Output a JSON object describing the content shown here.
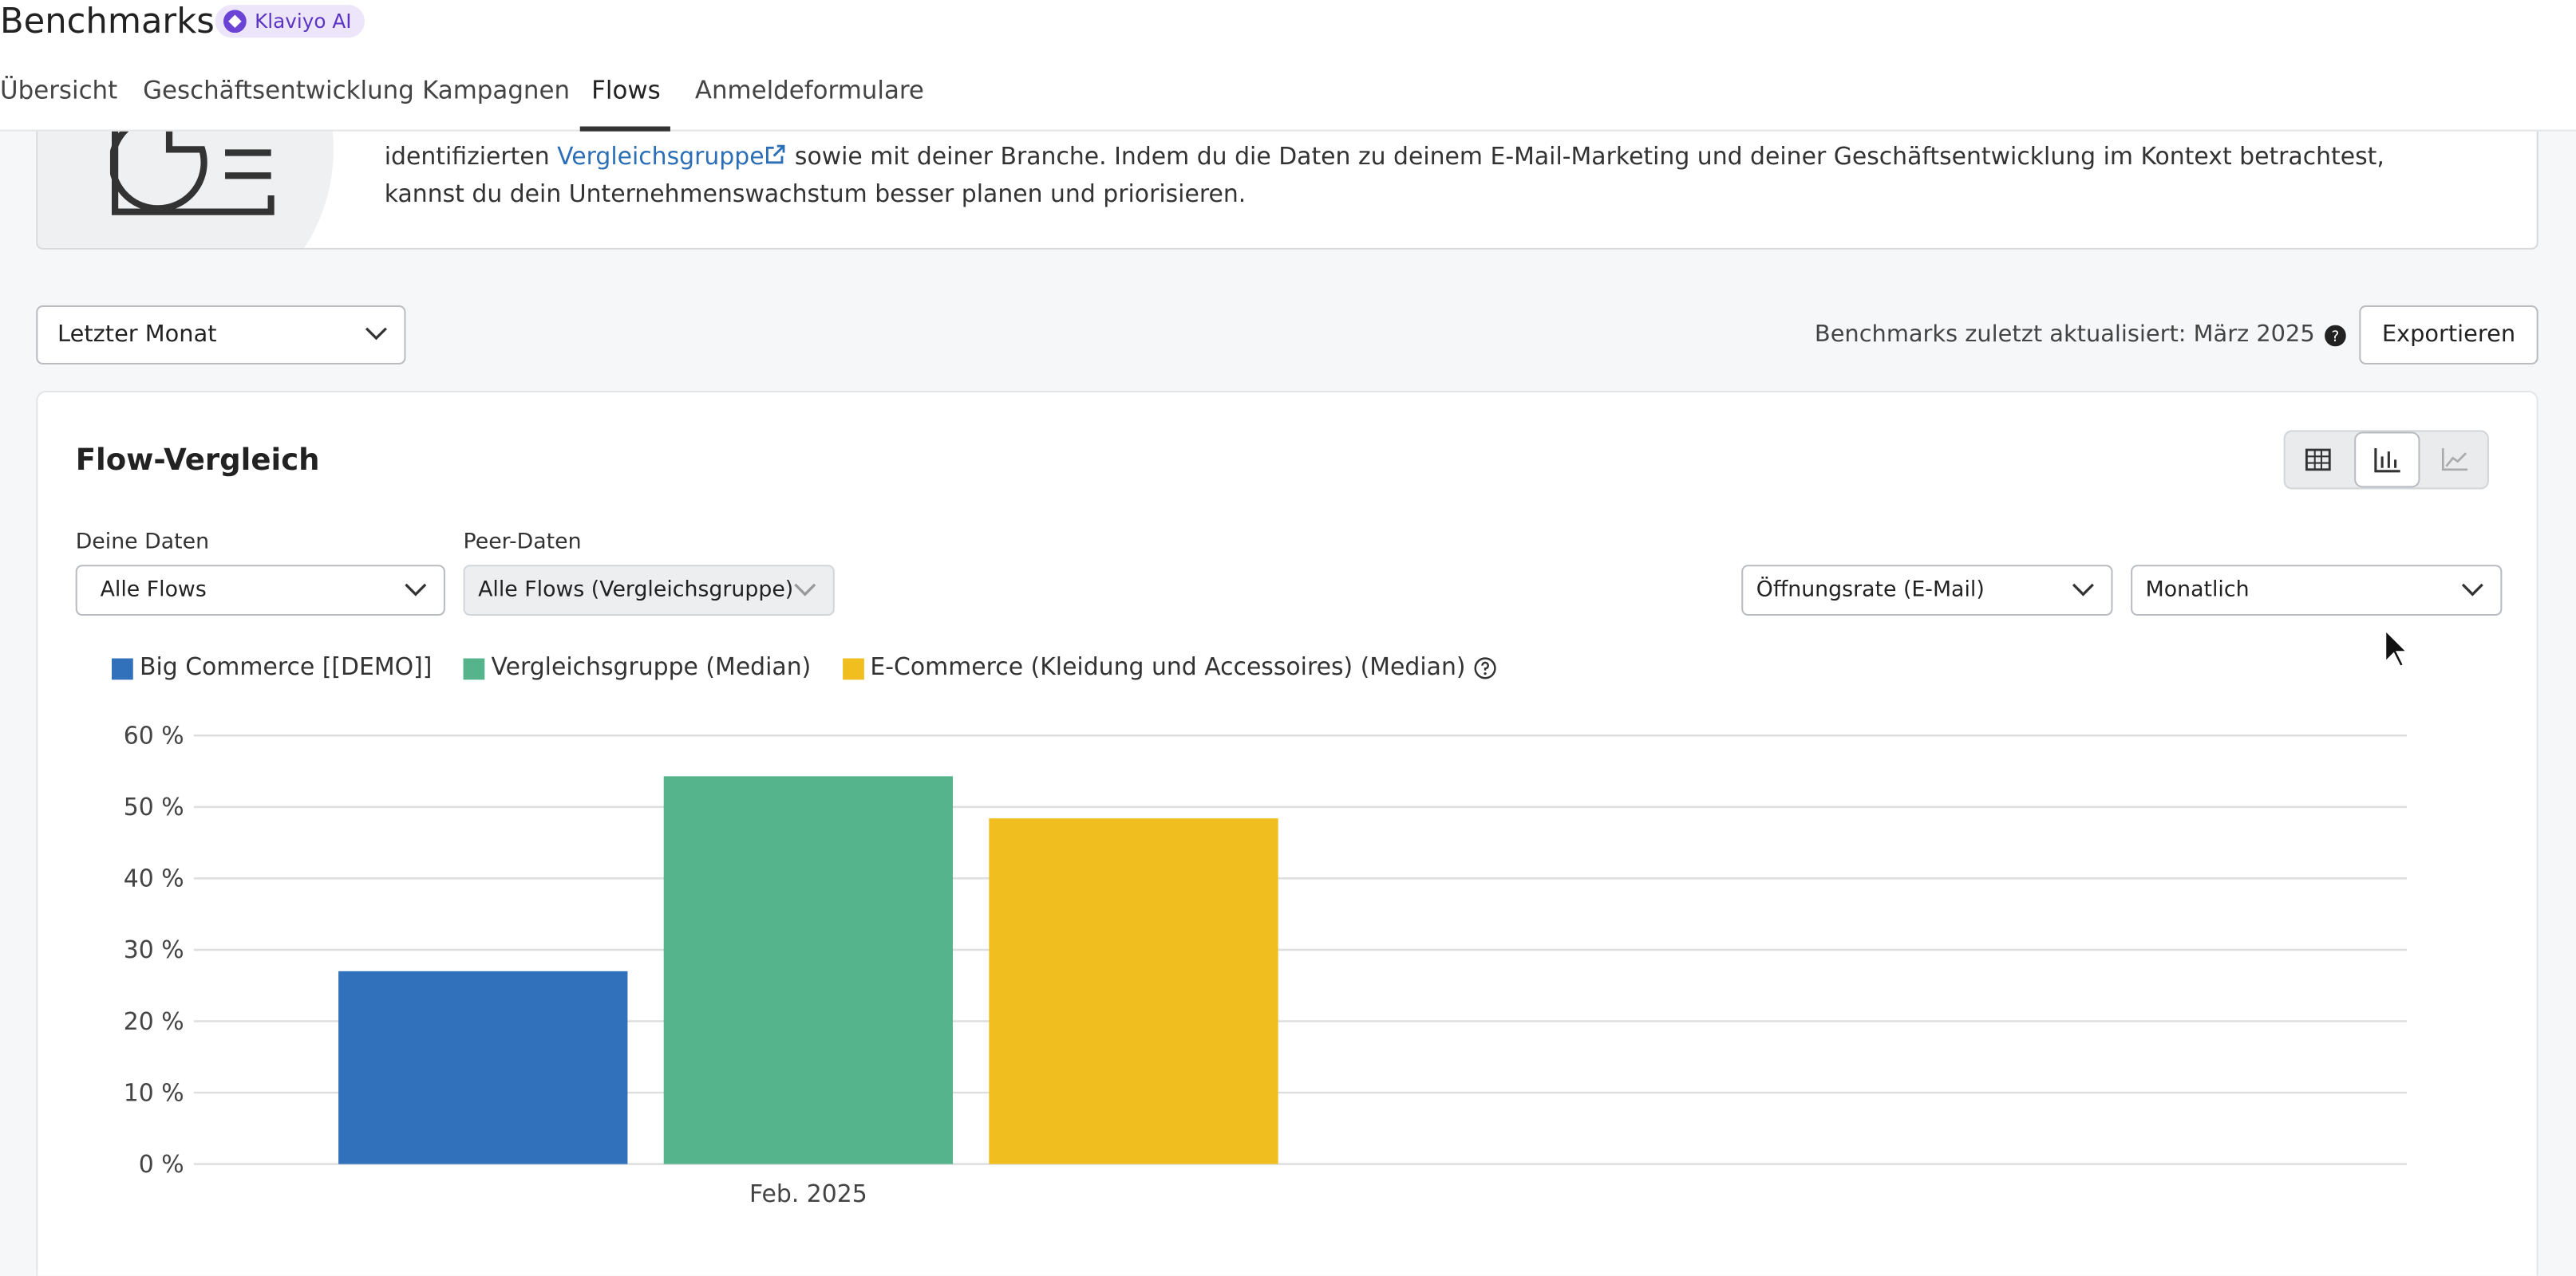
{
  "header": {
    "title": "Benchmarks",
    "badge": "Klaviyo AI"
  },
  "tabs": [
    "Übersicht",
    "Geschäftsentwicklung",
    "Kampagnen",
    "Flows",
    "Anmeldeformulare"
  ],
  "intro": {
    "before": "identifizierten",
    "link": "Vergleichsgruppe",
    "after": "sowie mit deiner Branche. Indem du die Daten zu deinem E-Mail-Marketing und deiner Geschäftsentwicklung im Kontext betrachtest, kannst du dein Unternehmenswachstum besser planen und priorisieren."
  },
  "toolbar": {
    "period": "Letzter Monat",
    "updated": "Benchmarks zuletzt aktualisiert: März 2025",
    "export": "Exportieren"
  },
  "card": {
    "title": "Flow-Vergleich",
    "filters": [
      {
        "label": "Deine Daten",
        "value": "Alle Flows"
      },
      {
        "label": "Peer-Daten",
        "value": "Alle Flows (Vergleichsgruppe)"
      }
    ],
    "metric": "Öffnungsrate (E-Mail)",
    "interval": "Monatlich"
  },
  "chart_data": {
    "type": "bar",
    "categories": [
      "Feb. 2025"
    ],
    "series": [
      {
        "name": "Big Commerce [[DEMO]]",
        "color": "#3170bb",
        "values": [
          27
        ]
      },
      {
        "name": "Vergleichsgruppe (Median)",
        "color": "#56b48c",
        "values": [
          54.3
        ]
      },
      {
        "name": "E-Commerce (Kleidung und Accessoires) (Median)",
        "color": "#f0be1e",
        "values": [
          48.4
        ]
      }
    ],
    "ylim": [
      0,
      60
    ],
    "yticks": [
      {
        "value": 0,
        "label": "0 %"
      },
      {
        "value": 10,
        "label": "10 %"
      },
      {
        "value": 20,
        "label": "20 %"
      },
      {
        "value": 30,
        "label": "30 %"
      },
      {
        "value": 40,
        "label": "40 %"
      },
      {
        "value": 50,
        "label": "50 %"
      },
      {
        "value": 60,
        "label": "60 %"
      }
    ],
    "grid": true
  }
}
